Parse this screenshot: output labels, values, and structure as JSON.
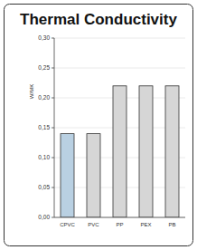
{
  "chart_data": {
    "type": "bar",
    "title": "Thermal Conductivity",
    "y_label": "W/MK",
    "categories": [
      "CPVC",
      "PVC",
      "PP",
      "PEX",
      "PB"
    ],
    "values": [
      0.14,
      0.14,
      0.22,
      0.22,
      0.22
    ],
    "colors": [
      "#b9d0e2",
      "#d6d6d6",
      "#d6d6d6",
      "#d6d6d6",
      "#d6d6d6"
    ],
    "ylim": [
      0,
      0.3
    ],
    "yticks": [
      {
        "value": 0,
        "label": "0,00"
      },
      {
        "value": 0.05,
        "label": "0,05"
      },
      {
        "value": 0.1,
        "label": "0,10"
      },
      {
        "value": 0.15,
        "label": "0,15"
      },
      {
        "value": 0.2,
        "label": "0,20"
      },
      {
        "value": 0.25,
        "label": "0,25"
      },
      {
        "value": 0.3,
        "label": "0,30"
      }
    ],
    "grid": true
  }
}
